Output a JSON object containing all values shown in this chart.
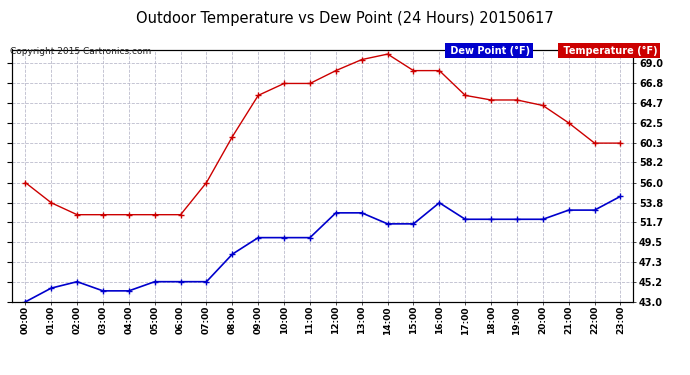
{
  "title": "Outdoor Temperature vs Dew Point (24 Hours) 20150617",
  "copyright": "Copyright 2015 Cartronics.com",
  "hours": [
    "00:00",
    "01:00",
    "02:00",
    "03:00",
    "04:00",
    "05:00",
    "06:00",
    "07:00",
    "08:00",
    "09:00",
    "10:00",
    "11:00",
    "12:00",
    "13:00",
    "14:00",
    "15:00",
    "16:00",
    "17:00",
    "18:00",
    "19:00",
    "20:00",
    "21:00",
    "22:00",
    "23:00"
  ],
  "temperature": [
    56.0,
    53.8,
    52.5,
    52.5,
    52.5,
    52.5,
    52.5,
    56.0,
    61.0,
    65.5,
    66.8,
    66.8,
    68.2,
    69.4,
    70.0,
    68.2,
    68.2,
    65.5,
    65.0,
    65.0,
    64.4,
    62.5,
    60.3,
    60.3
  ],
  "dew_point": [
    43.0,
    44.5,
    45.2,
    44.2,
    44.2,
    45.2,
    45.2,
    45.2,
    48.2,
    50.0,
    50.0,
    50.0,
    52.7,
    52.7,
    51.5,
    51.5,
    53.8,
    52.0,
    52.0,
    52.0,
    52.0,
    53.0,
    53.0,
    54.5
  ],
  "temp_color": "#cc0000",
  "dew_color": "#0000cc",
  "ylim": [
    43.0,
    70.5
  ],
  "yticks_right": [
    43.0,
    45.2,
    47.3,
    49.5,
    51.7,
    53.8,
    56.0,
    58.2,
    60.3,
    62.5,
    64.7,
    66.8,
    69.0
  ],
  "background_color": "#ffffff",
  "grid_color": "#bbbbcc",
  "legend_dew_bg": "#0000cc",
  "legend_temp_bg": "#cc0000",
  "legend_text_color": "#ffffff"
}
